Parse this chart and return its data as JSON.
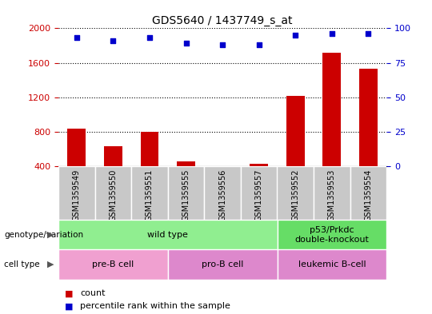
{
  "title": "GDS5640 / 1437749_s_at",
  "samples": [
    "GSM1359549",
    "GSM1359550",
    "GSM1359551",
    "GSM1359555",
    "GSM1359556",
    "GSM1359557",
    "GSM1359552",
    "GSM1359553",
    "GSM1359554"
  ],
  "counts": [
    840,
    630,
    800,
    460,
    390,
    430,
    1220,
    1720,
    1530
  ],
  "percentile_ranks": [
    93,
    91,
    93,
    89,
    88,
    88,
    95,
    96,
    96
  ],
  "ylim_left": [
    400,
    2000
  ],
  "ylim_right": [
    0,
    100
  ],
  "left_ticks": [
    400,
    800,
    1200,
    1600,
    2000
  ],
  "right_ticks": [
    0,
    25,
    50,
    75,
    100
  ],
  "bar_color": "#CC0000",
  "dot_color": "#0000CC",
  "bar_width": 0.5,
  "ylabel_left_color": "#CC0000",
  "ylabel_right_color": "#0000CC",
  "gray_box_color": "#C8C8C8",
  "genotype_groups": [
    {
      "label": "wild type",
      "start": 0,
      "end": 6,
      "color": "#90EE90"
    },
    {
      "label": "p53/Prkdc\ndouble-knockout",
      "start": 6,
      "end": 9,
      "color": "#66DD66"
    }
  ],
  "cell_type_groups": [
    {
      "label": "pre-B cell",
      "start": 0,
      "end": 3,
      "color": "#F0A0D0"
    },
    {
      "label": "pro-B cell",
      "start": 3,
      "end": 6,
      "color": "#DD88CC"
    },
    {
      "label": "leukemic B-cell",
      "start": 6,
      "end": 9,
      "color": "#DD88CC"
    }
  ],
  "legend_items": [
    {
      "label": "count",
      "color": "#CC0000"
    },
    {
      "label": "percentile rank within the sample",
      "color": "#0000CC"
    }
  ],
  "label_fontsize": 8,
  "tick_fontsize": 8,
  "sample_fontsize": 7
}
